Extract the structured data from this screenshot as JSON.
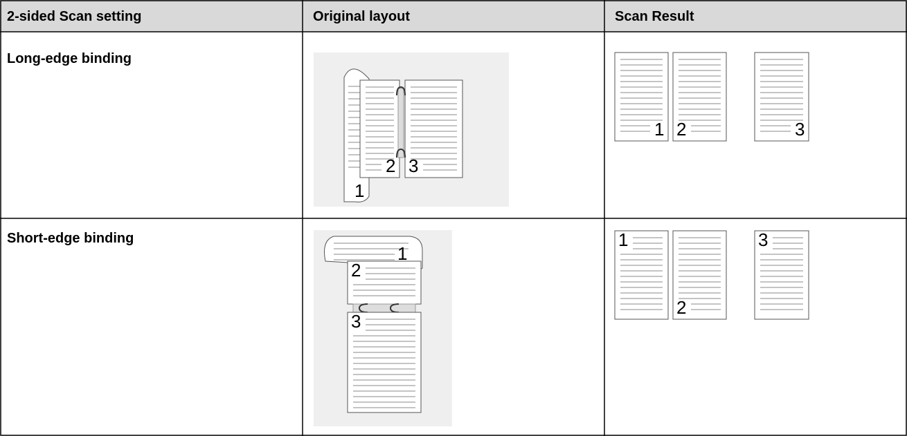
{
  "table": {
    "header": [
      "2-sided Scan setting",
      "Original layout",
      "Scan Result"
    ],
    "rows": [
      {
        "setting": "Long-edge binding",
        "layout_labels": [
          "1",
          "2",
          "3"
        ],
        "result_labels": [
          "1",
          "2",
          "3"
        ]
      },
      {
        "setting": "Short-edge binding",
        "layout_labels": [
          "1",
          "2",
          "3"
        ],
        "result_labels": [
          "1",
          "2",
          "3"
        ]
      }
    ]
  }
}
